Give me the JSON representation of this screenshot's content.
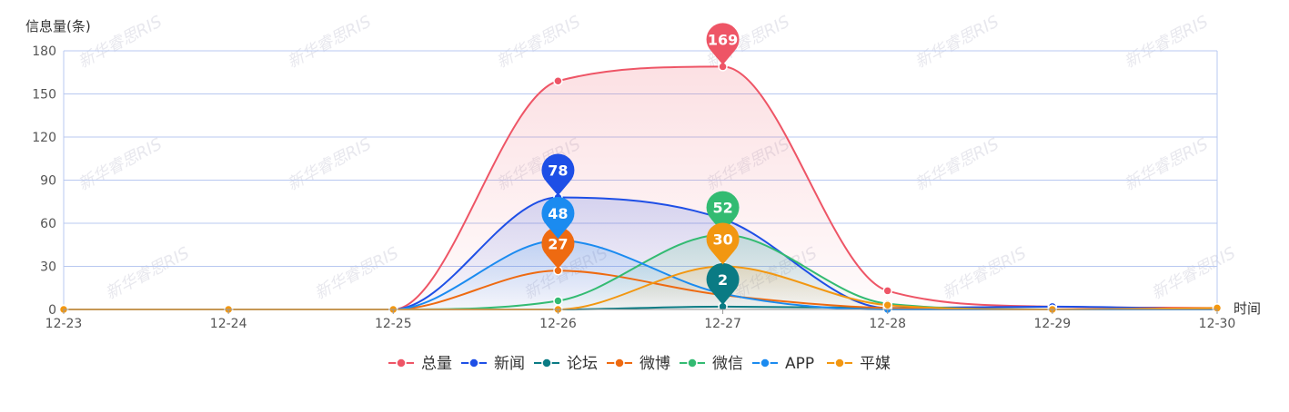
{
  "chart_data": {
    "type": "line",
    "ylabel": "信息量(条)",
    "xlabel": "时间",
    "ylim": [
      0,
      180
    ],
    "yticks": [
      0,
      30,
      60,
      90,
      120,
      150,
      180
    ],
    "categories": [
      "12-23",
      "12-24",
      "12-25",
      "12-26",
      "12-27",
      "12-28",
      "12-29",
      "12-30"
    ],
    "grid": true,
    "legend_position": "bottom",
    "series": [
      {
        "name": "总量",
        "color": "#EE5566",
        "values": [
          0,
          0,
          0,
          159,
          169,
          13,
          2,
          1
        ],
        "peak": {
          "index": 4,
          "value": "169"
        },
        "area": true
      },
      {
        "name": "新闻",
        "color": "#1E4FE6",
        "values": [
          0,
          0,
          0,
          78,
          63,
          1,
          2,
          0
        ],
        "peak": {
          "index": 3,
          "value": "78"
        },
        "area": true
      },
      {
        "name": "论坛",
        "color": "#0A7B84",
        "values": [
          0,
          0,
          0,
          0,
          2,
          1,
          0,
          0
        ],
        "peak": {
          "index": 4,
          "value": "2"
        },
        "area": false
      },
      {
        "name": "微博",
        "color": "#EE6A11",
        "values": [
          0,
          0,
          0,
          27,
          10,
          1,
          0,
          0
        ],
        "peak": {
          "index": 3,
          "value": "27"
        },
        "area": false
      },
      {
        "name": "微信",
        "color": "#33BB72",
        "values": [
          0,
          0,
          0,
          6,
          52,
          4,
          0,
          0
        ],
        "peak": {
          "index": 4,
          "value": "52"
        },
        "area": true
      },
      {
        "name": "APP",
        "color": "#1B8BF0",
        "values": [
          0,
          0,
          0,
          48,
          11,
          0,
          0,
          0
        ],
        "peak": {
          "index": 3,
          "value": "48"
        },
        "area": true
      },
      {
        "name": "平媒",
        "color": "#F29711",
        "values": [
          0,
          0,
          0,
          0,
          30,
          3,
          0,
          1
        ],
        "peak": {
          "index": 4,
          "value": "30"
        },
        "area": true
      }
    ]
  },
  "watermark": "新华睿思RIS"
}
